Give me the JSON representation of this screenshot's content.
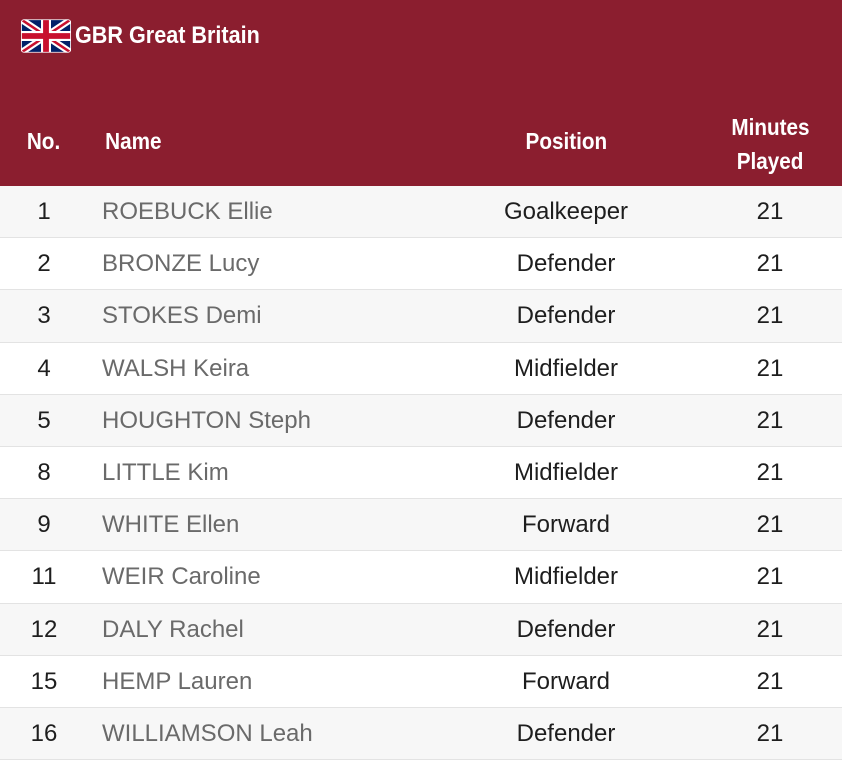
{
  "team": {
    "flag_icon": "uk-flag-icon",
    "name": "GBR Great Britain"
  },
  "colors": {
    "header_bg": "#8b1e2f",
    "header_text": "#ffffff"
  },
  "columns": {
    "no": "No.",
    "name": "Name",
    "position": "Position",
    "minutes_line1": "Minutes",
    "minutes_line2": "Played"
  },
  "players": [
    {
      "no": "1",
      "name": "ROEBUCK Ellie",
      "position": "Goalkeeper",
      "minutes": "21"
    },
    {
      "no": "2",
      "name": "BRONZE Lucy",
      "position": "Defender",
      "minutes": "21"
    },
    {
      "no": "3",
      "name": "STOKES Demi",
      "position": "Defender",
      "minutes": "21"
    },
    {
      "no": "4",
      "name": "WALSH Keira",
      "position": "Midfielder",
      "minutes": "21"
    },
    {
      "no": "5",
      "name": "HOUGHTON Steph",
      "position": "Defender",
      "minutes": "21"
    },
    {
      "no": "8",
      "name": "LITTLE Kim",
      "position": "Midfielder",
      "minutes": "21"
    },
    {
      "no": "9",
      "name": "WHITE Ellen",
      "position": "Forward",
      "minutes": "21"
    },
    {
      "no": "11",
      "name": "WEIR Caroline",
      "position": "Midfielder",
      "minutes": "21"
    },
    {
      "no": "12",
      "name": "DALY Rachel",
      "position": "Defender",
      "minutes": "21"
    },
    {
      "no": "15",
      "name": "HEMP Lauren",
      "position": "Forward",
      "minutes": "21"
    },
    {
      "no": "16",
      "name": "WILLIAMSON Leah",
      "position": "Defender",
      "minutes": "21"
    }
  ]
}
